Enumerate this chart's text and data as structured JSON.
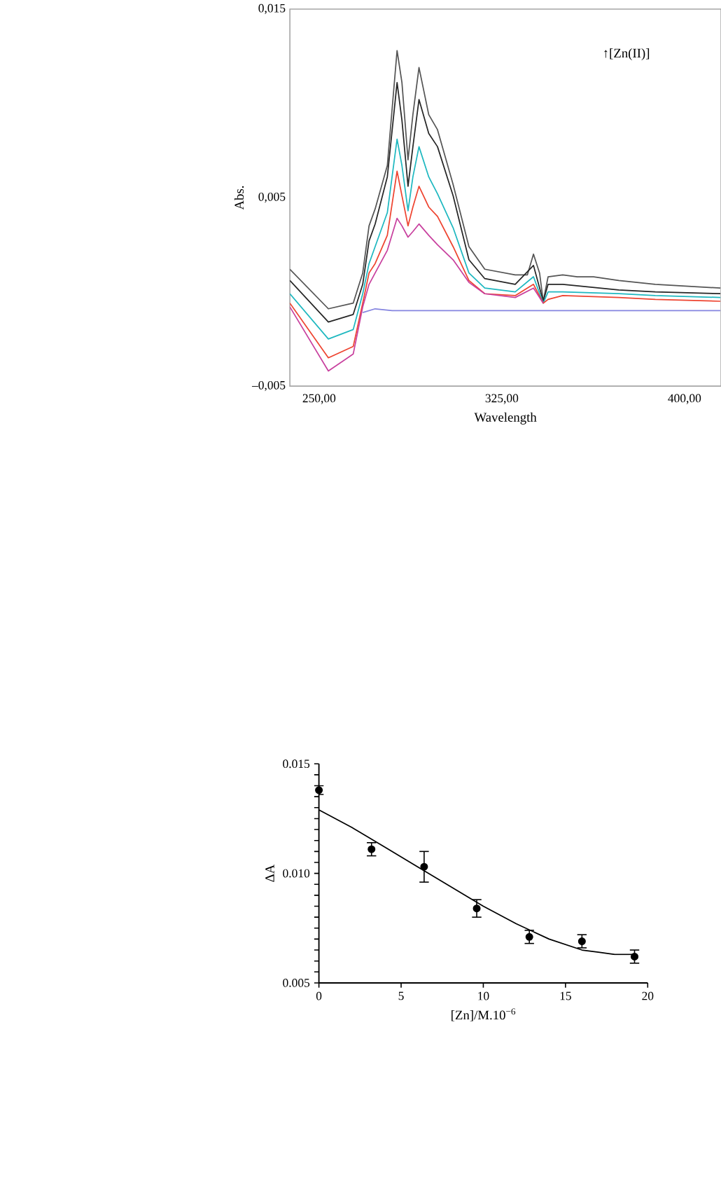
{
  "chart_data": [
    {
      "type": "line",
      "xlabel": "Wavelength",
      "ylabel": "Abs.",
      "annotations": [
        "↑[Zn(II)]"
      ],
      "xlim": [
        238,
        415
      ],
      "ylim": [
        -0.005,
        0.015
      ],
      "xticks": [
        {
          "value": 250,
          "label": "250,00"
        },
        {
          "value": 325,
          "label": "325,00"
        },
        {
          "value": 400,
          "label": "400,00"
        }
      ],
      "yticks": [
        {
          "value": -0.005,
          "label": "–0,005"
        },
        {
          "value": 0.005,
          "label": "0,005"
        },
        {
          "value": 0.015,
          "label": "0,015"
        }
      ],
      "series": [
        {
          "color": "#555555",
          "x": [
            238,
            253.8,
            264,
            267.9,
            270.5,
            273,
            278,
            282,
            284,
            286.5,
            288.5,
            291,
            295,
            298.6,
            305,
            311.5,
            318,
            330.5,
            335.5,
            338,
            340.5,
            342,
            344,
            350,
            356,
            362.7,
            373,
            388,
            414.7
          ],
          "values": [
            0.0012,
            -0.0009,
            -0.0006,
            0.001,
            0.0035,
            0.0044,
            0.0067,
            0.0128,
            0.0111,
            0.007,
            0.0094,
            0.0119,
            0.0094,
            0.0086,
            0.0057,
            0.0024,
            0.0012,
            0.0009,
            0.0009,
            0.002,
            0.001,
            -0.0005,
            0.0008,
            0.0009,
            0.0008,
            0.0008,
            0.0006,
            0.0004,
            0.0002
          ]
        },
        {
          "color": "#262626",
          "x": [
            238,
            253.8,
            264,
            267.9,
            270.5,
            273,
            278,
            282,
            284,
            286.5,
            288.5,
            291,
            295,
            298.6,
            305,
            311.5,
            318,
            330.5,
            338,
            342,
            344,
            350,
            373,
            388,
            414.7
          ],
          "values": [
            0.0006,
            -0.0016,
            -0.0012,
            0.0004,
            0.0027,
            0.0036,
            0.0061,
            0.0111,
            0.0091,
            0.0056,
            0.0077,
            0.0102,
            0.0084,
            0.0077,
            0.0051,
            0.0017,
            0.0007,
            0.0004,
            0.0014,
            -0.0005,
            0.0004,
            0.0004,
            0.0001,
            0.0,
            -0.0001
          ]
        },
        {
          "color": "#1fb8c0",
          "x": [
            238,
            253.8,
            264,
            267.9,
            270.5,
            273,
            278,
            282,
            284,
            286.5,
            288.5,
            291,
            295,
            298.6,
            305,
            311.5,
            318,
            330.5,
            338,
            342,
            344,
            350,
            373,
            388,
            414.7
          ],
          "values": [
            -0.0001,
            -0.0025,
            -0.002,
            -0.0001,
            0.0015,
            0.0024,
            0.0042,
            0.0081,
            0.0067,
            0.0043,
            0.0061,
            0.0077,
            0.0061,
            0.0052,
            0.0034,
            0.001,
            0.0002,
            0.0,
            0.0008,
            -0.0006,
            0.0,
            0.0,
            -0.0001,
            -0.0002,
            -0.0003
          ]
        },
        {
          "color": "#ee4430",
          "x": [
            238,
            253.8,
            264,
            267.9,
            270.5,
            273,
            278,
            282,
            284,
            286.5,
            288.5,
            291,
            295,
            298.6,
            305,
            311.5,
            318,
            330.5,
            338,
            342,
            344,
            350,
            373,
            388,
            414.7
          ],
          "values": [
            -0.0006,
            -0.0035,
            -0.0029,
            -0.0006,
            0.001,
            0.0015,
            0.003,
            0.0064,
            0.0051,
            0.0035,
            0.0045,
            0.0056,
            0.0045,
            0.004,
            0.0024,
            0.0006,
            -0.0001,
            -0.0002,
            0.0004,
            -0.0006,
            -0.0004,
            -0.0002,
            -0.0003,
            -0.0004,
            -0.0005
          ]
        },
        {
          "color": "#c8409e",
          "x": [
            238,
            253.8,
            264,
            267.9,
            270.5,
            273,
            278,
            282,
            284,
            286.5,
            288.5,
            291,
            295,
            298.6,
            305,
            311.5,
            318,
            330.5,
            338,
            342
          ],
          "values": [
            -0.0008,
            -0.0042,
            -0.0033,
            -0.0008,
            0.0004,
            0.001,
            0.0022,
            0.0039,
            0.0035,
            0.0029,
            0.0032,
            0.0036,
            0.003,
            0.0025,
            0.0017,
            0.0005,
            -0.0001,
            -0.0003,
            0.0002,
            -0.0006
          ]
        },
        {
          "color": "#8585e0",
          "x": [
            267.9,
            273,
            280,
            300,
            320,
            340,
            360,
            380,
            400,
            414.7
          ],
          "values": [
            -0.0011,
            -0.0009,
            -0.001,
            -0.001,
            -0.001,
            -0.001,
            -0.001,
            -0.001,
            -0.001,
            -0.001
          ]
        }
      ]
    },
    {
      "type": "scatter",
      "xlabel": "[Zn]/M.10$^{−6}$",
      "ylabel": "ΔA",
      "xlim": [
        0,
        20
      ],
      "ylim": [
        0.005,
        0.015
      ],
      "xticks": [
        0,
        5,
        10,
        15,
        20
      ],
      "yticks": [
        {
          "value": 0.005,
          "label": "0.005"
        },
        {
          "value": 0.0055,
          "label": null
        },
        {
          "value": 0.006,
          "label": null
        },
        {
          "value": 0.0065,
          "label": null
        },
        {
          "value": 0.007,
          "label": null
        },
        {
          "value": 0.0075,
          "label": null
        },
        {
          "value": 0.008,
          "label": null
        },
        {
          "value": 0.0085,
          "label": null
        },
        {
          "value": 0.009,
          "label": null
        },
        {
          "value": 0.0095,
          "label": null
        },
        {
          "value": 0.01,
          "label": "0.010"
        },
        {
          "value": 0.0105,
          "label": null
        },
        {
          "value": 0.011,
          "label": null
        },
        {
          "value": 0.0115,
          "label": null
        },
        {
          "value": 0.012,
          "label": null
        },
        {
          "value": 0.0125,
          "label": null
        },
        {
          "value": 0.013,
          "label": null
        },
        {
          "value": 0.0135,
          "label": null
        },
        {
          "value": 0.014,
          "label": null
        },
        {
          "value": 0.0145,
          "label": null
        },
        {
          "value": 0.015,
          "label": "0.015"
        }
      ],
      "series": [
        {
          "type": "scatter",
          "color": "#000000",
          "marker": "circle",
          "x": [
            0,
            3.2,
            6.4,
            9.6,
            12.8,
            16,
            19.2
          ],
          "values": [
            0.0138,
            0.0111,
            0.0103,
            0.0084,
            0.0071,
            0.0069,
            0.0062
          ],
          "errors": [
            0.0002,
            0.0003,
            0.0007,
            0.0004,
            0.0003,
            0.0003,
            0.0003
          ]
        },
        {
          "type": "line",
          "color": "#000000",
          "x": [
            0,
            2,
            4,
            6,
            8,
            10,
            12,
            14,
            16,
            17,
            18,
            19.2
          ],
          "values": [
            0.0129,
            0.0121,
            0.0112,
            0.0103,
            0.0094,
            0.0085,
            0.0077,
            0.007,
            0.0065,
            0.0064,
            0.0063,
            0.0063
          ]
        }
      ]
    }
  ]
}
